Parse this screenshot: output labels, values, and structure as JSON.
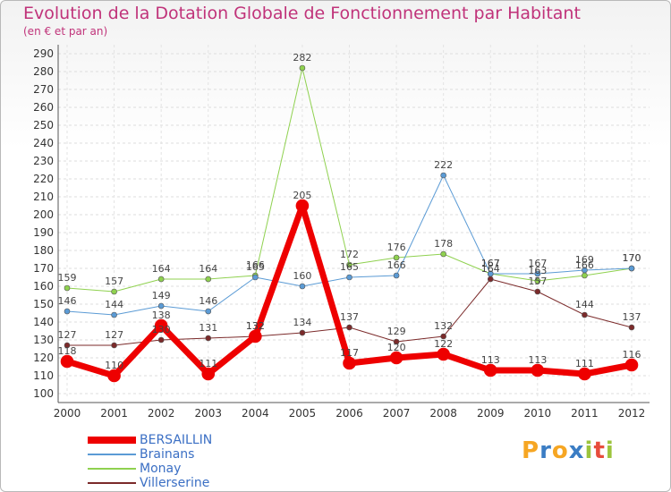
{
  "title": "Evolution de la Dotation Globale de Fonctionnement par Habitant",
  "subtitle": "(en € et par an)",
  "logo": {
    "letters": [
      "P",
      "r",
      "o",
      "x",
      "i",
      "t",
      "i"
    ],
    "colors": [
      "#f6a623",
      "#3b7dc4",
      "#f6a623",
      "#3b7dc4",
      "#9cc43c",
      "#e74c3c",
      "#9cc43c"
    ]
  },
  "chart_data": {
    "type": "line",
    "title": "Evolution de la Dotation Globale de Fonctionnement par Habitant",
    "subtitle": "(en € et par an)",
    "xlabel": "",
    "ylabel": "",
    "categories": [
      "2000",
      "2001",
      "2002",
      "2003",
      "2004",
      "2005",
      "2006",
      "2007",
      "2008",
      "2009",
      "2010",
      "2011",
      "2012"
    ],
    "ylim": [
      100,
      290
    ],
    "yticks": [
      100,
      110,
      120,
      130,
      140,
      150,
      160,
      170,
      180,
      190,
      200,
      210,
      220,
      230,
      240,
      250,
      260,
      270,
      280,
      290
    ],
    "grid": true,
    "legend_position": "bottom-left",
    "series": [
      {
        "name": "BERSAILLIN",
        "color": "#ee0000",
        "width": 7,
        "marker": 7,
        "values": [
          118,
          110,
          138,
          111,
          132,
          205,
          117,
          120,
          122,
          113,
          113,
          111,
          116
        ],
        "labels": [
          "118",
          "110",
          "138",
          "111",
          "132",
          "205",
          "117",
          "120",
          "122",
          "113",
          "113",
          "111",
          "116"
        ]
      },
      {
        "name": "Brainans",
        "color": "#5b9bd5",
        "width": 1,
        "marker": 3,
        "values": [
          146,
          144,
          149,
          146,
          165,
          160,
          165,
          166,
          222,
          167,
          167,
          169,
          170
        ],
        "labels": [
          "146",
          "144",
          "149",
          "146",
          "165",
          "160",
          "165",
          "166",
          "222",
          "167",
          "167",
          "169",
          "170"
        ]
      },
      {
        "name": "Monay",
        "color": "#8fd14f",
        "width": 1,
        "marker": 3,
        "values": [
          159,
          157,
          164,
          164,
          166,
          282,
          172,
          176,
          178,
          167,
          163,
          166,
          170
        ],
        "labels": [
          "159",
          "157",
          "164",
          "164",
          "166",
          "282",
          "172",
          "176",
          "178",
          "167",
          "163",
          "166",
          "170"
        ]
      },
      {
        "name": "Villerserine",
        "color": "#7b2a2a",
        "width": 1,
        "marker": 3,
        "values": [
          127,
          127,
          130,
          131,
          132,
          134,
          137,
          129,
          132,
          164,
          157,
          144,
          137
        ],
        "labels": [
          "127",
          "127",
          "130",
          "131",
          "132",
          "134",
          "137",
          "129",
          "132",
          "164",
          "157",
          "144",
          "137"
        ]
      }
    ]
  }
}
